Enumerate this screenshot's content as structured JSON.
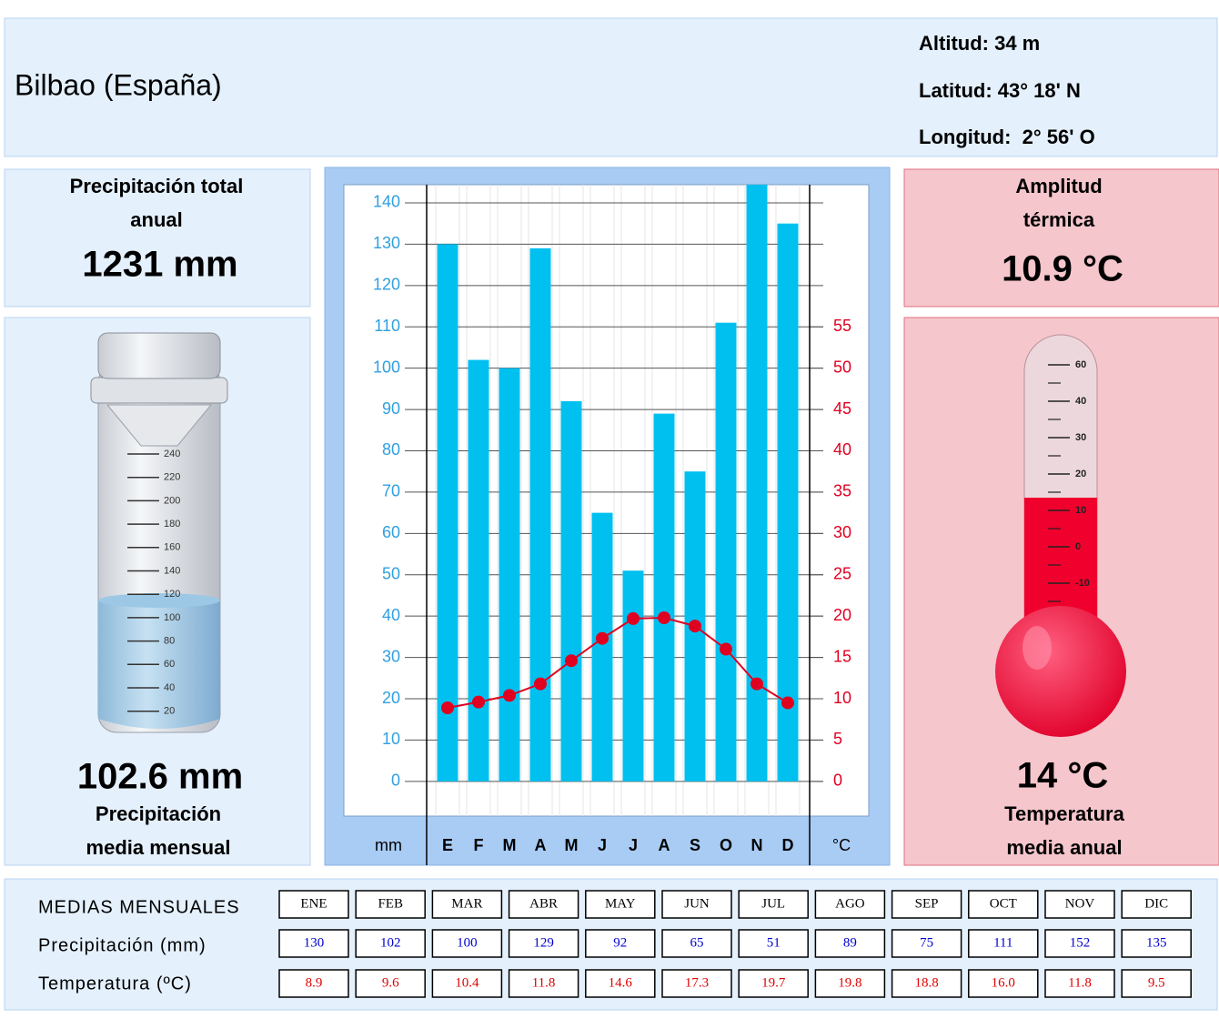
{
  "header": {
    "title": "Bilbao (España)",
    "altitude": "Altitud: 34 m",
    "latitude": "Latitud: 43° 18' N",
    "longitude": "Longitud:  2° 56' O"
  },
  "precipitation_panel": {
    "total_label_1": "Precipitación total",
    "total_label_2": "anual",
    "total_value": "1231 mm",
    "mean_value": "102.6 mm",
    "mean_label_1": "Precipitación",
    "mean_label_2": "media mensual",
    "gauge_ticks": [
      240,
      220,
      200,
      180,
      160,
      140,
      120,
      100,
      80,
      60,
      40,
      20
    ]
  },
  "temperature_panel": {
    "range_label_1": "Amplitud",
    "range_label_2": "térmica",
    "range_value": "10.9 °C",
    "mean_value": "14 °C",
    "mean_label_1": "Temperatura",
    "mean_label_2": "media anual",
    "thermometer_ticks": [
      60,
      40,
      30,
      20,
      10,
      0,
      -10
    ]
  },
  "chart_data": {
    "type": "climograph",
    "categories": [
      "E",
      "F",
      "M",
      "A",
      "M",
      "J",
      "J",
      "A",
      "S",
      "O",
      "N",
      "D"
    ],
    "y_label": "mm",
    "y2_label": "°C",
    "ylim": [
      -8.4,
      144.4
    ],
    "yticks": [
      0,
      10,
      20,
      30,
      40,
      50,
      60,
      70,
      80,
      90,
      100,
      110,
      120,
      130,
      140
    ],
    "y2lim": [
      -4.2,
      72.2
    ],
    "y2ticks": [
      0,
      5,
      10,
      15,
      20,
      25,
      30,
      35,
      40,
      45,
      50,
      55
    ],
    "grid": true,
    "series": [
      {
        "name": "Precipitación (mm)",
        "type": "bar",
        "color": "#00c0f0",
        "values": [
          130,
          102,
          100,
          129,
          92,
          65,
          51,
          89,
          75,
          111,
          152,
          135
        ]
      },
      {
        "name": "Temperatura (ºC)",
        "type": "line",
        "axis": "y2",
        "color": "#e00020",
        "values": [
          8.9,
          9.6,
          10.4,
          11.8,
          14.6,
          17.3,
          19.7,
          19.8,
          18.8,
          16.0,
          11.8,
          9.5
        ],
        "value_labels": [
          "8.9",
          "9.6",
          "10.4",
          "11.8",
          "14.6",
          "17.3",
          "19.7",
          "19.8",
          "18.8",
          "16.0",
          "11.8",
          "9.5"
        ]
      }
    ]
  },
  "table": {
    "title": "MEDIAS MENSUALES",
    "months": [
      "ENE",
      "FEB",
      "MAR",
      "ABR",
      "MAY",
      "JUN",
      "JUL",
      "AGO",
      "SEP",
      "OCT",
      "NOV",
      "DIC"
    ]
  }
}
